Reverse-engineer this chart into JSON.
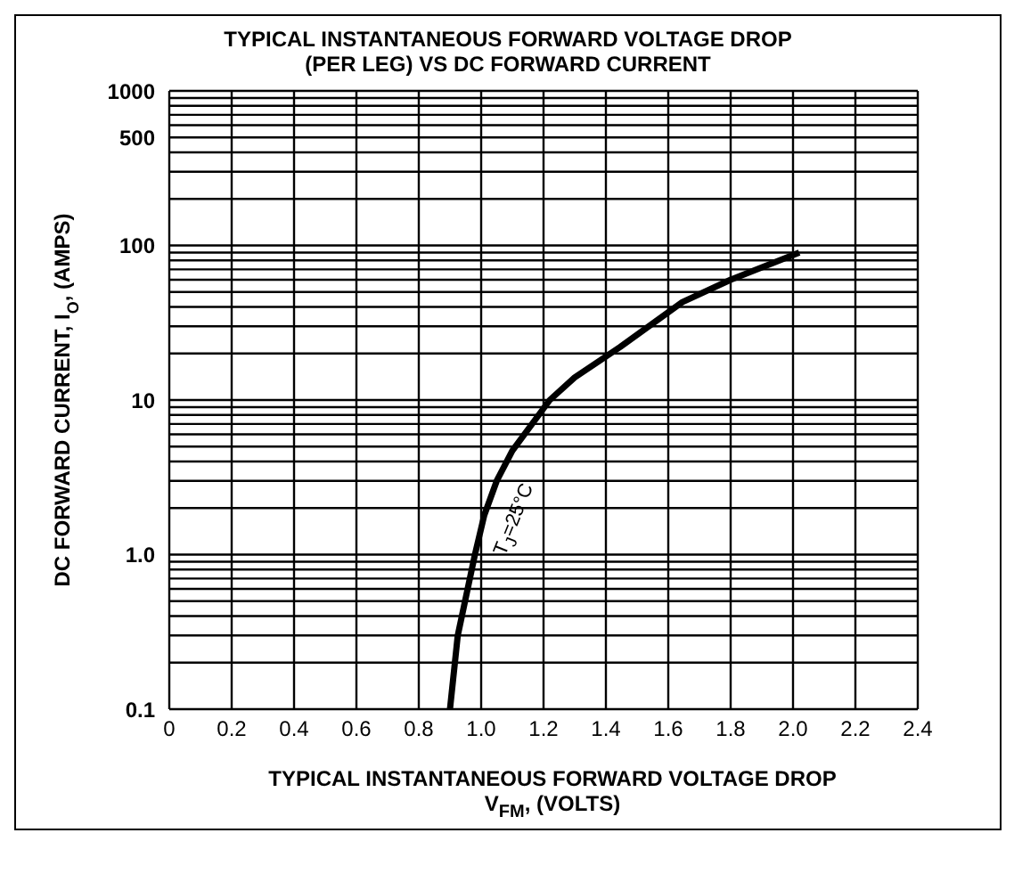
{
  "chart_data": {
    "type": "line",
    "title": "TYPICAL INSTANTANEOUS FORWARD VOLTAGE DROP (PER LEG) VS DC FORWARD CURRENT",
    "xlabel": "TYPICAL INSTANTANEOUS FORWARD VOLTAGE DROP V$_{FM}$, (VOLTS)",
    "ylabel": "DC FORWARD CURRENT, I$_{O}$, (AMPS)",
    "log": "y",
    "grid": true,
    "marker": "none",
    "line_style": "solid",
    "x": [
      0.9,
      0.925,
      0.98,
      1.01,
      1.05,
      1.1,
      1.22,
      1.3,
      1.445,
      1.645,
      1.8,
      2.02
    ],
    "series": [
      {
        "color": "#000000",
        "values": [
          0.1,
          0.3,
          1,
          1.8,
          3,
          4.7,
          10,
          14,
          22,
          43,
          60,
          90
        ]
      }
    ],
    "xlim": [
      0,
      2.4
    ],
    "xticks": [
      0,
      0.2,
      0.4,
      0.6,
      0.8,
      {
        "value": 1,
        "label": "1.0"
      },
      1.2,
      1.4,
      1.6,
      1.8,
      {
        "value": 2,
        "label": "2.0"
      },
      2.2,
      2.4
    ],
    "ylim": [
      0.1,
      1000
    ],
    "yticks": [
      0.1,
      {
        "value": 0.2,
        "label": null
      },
      {
        "value": 0.3,
        "label": null
      },
      {
        "value": 0.4,
        "label": null
      },
      {
        "value": 0.5,
        "label": null
      },
      {
        "value": 0.6,
        "label": null
      },
      {
        "value": 0.7,
        "label": null
      },
      {
        "value": 0.8,
        "label": null
      },
      {
        "value": 0.9,
        "label": null
      },
      {
        "value": 1,
        "label": "1.0"
      },
      {
        "value": 2,
        "label": null
      },
      {
        "value": 3,
        "label": null
      },
      {
        "value": 4,
        "label": null
      },
      {
        "value": 5,
        "label": null
      },
      {
        "value": 6,
        "label": null
      },
      {
        "value": 7,
        "label": null
      },
      {
        "value": 8,
        "label": null
      },
      {
        "value": 9,
        "label": null
      },
      10,
      {
        "value": 20,
        "label": null
      },
      {
        "value": 30,
        "label": null
      },
      {
        "value": 40,
        "label": null
      },
      {
        "value": 50,
        "label": null
      },
      {
        "value": 60,
        "label": null
      },
      {
        "value": 70,
        "label": null
      },
      {
        "value": 80,
        "label": null
      },
      {
        "value": 90,
        "label": null
      },
      100,
      {
        "value": 200,
        "label": null
      },
      {
        "value": 300,
        "label": null
      },
      {
        "value": 400,
        "label": null
      },
      500,
      {
        "value": 600,
        "label": null
      },
      {
        "value": 700,
        "label": null
      },
      {
        "value": 800,
        "label": null
      },
      {
        "value": 900,
        "label": null
      },
      1000
    ],
    "annotations": [
      "T$_{J}$=25°C"
    ]
  }
}
